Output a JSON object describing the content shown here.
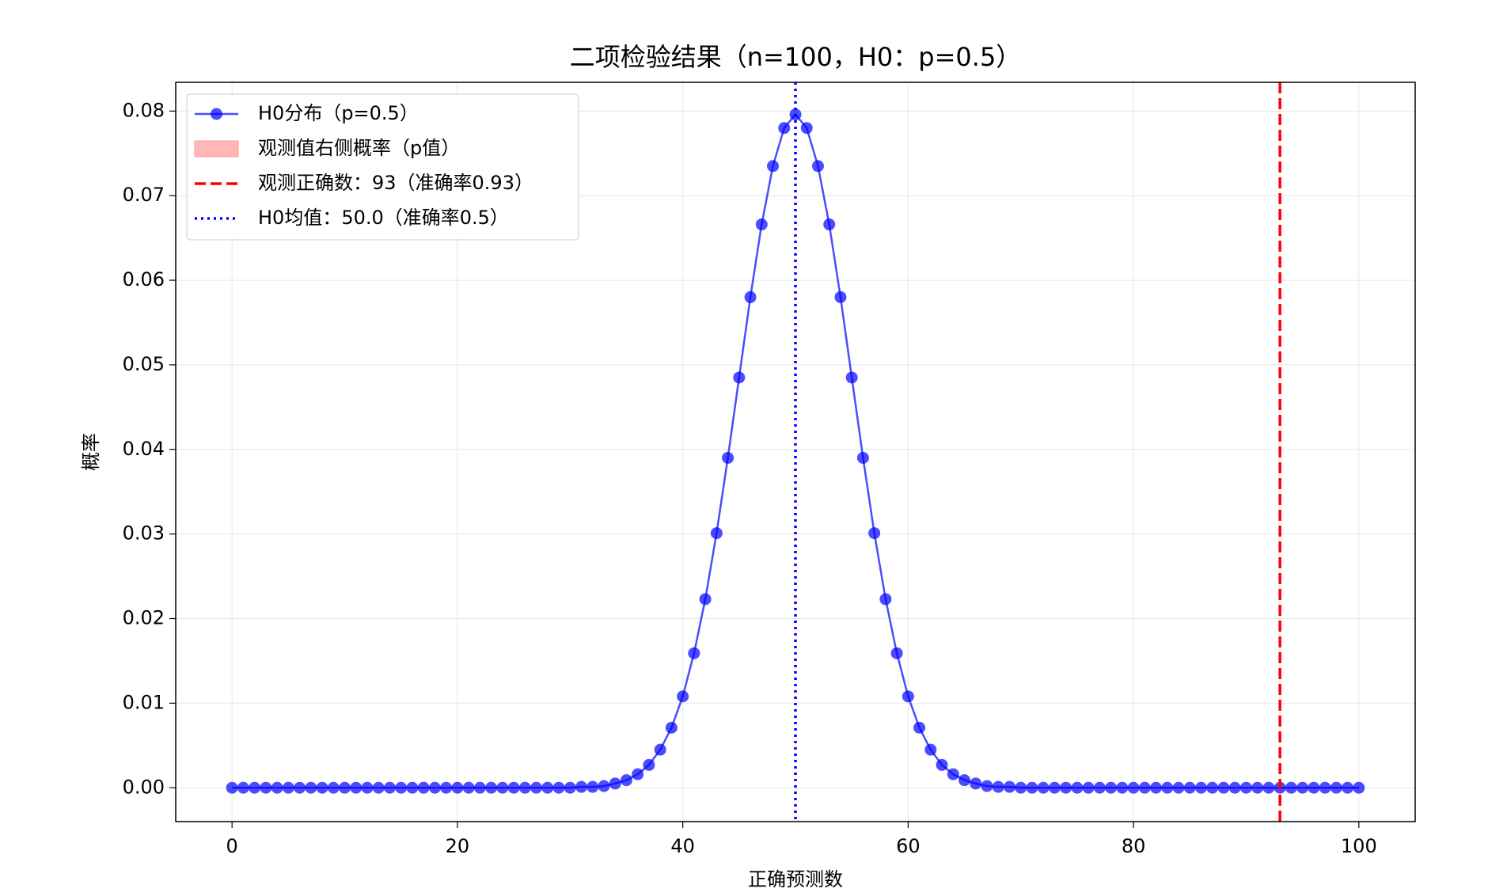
{
  "chart_data": {
    "type": "line",
    "title": "二项检验结果（n=100，H0：p=0.5）",
    "x_label": "正确预测数",
    "y_label": "概率",
    "x": [
      0,
      1,
      2,
      3,
      4,
      5,
      6,
      7,
      8,
      9,
      10,
      11,
      12,
      13,
      14,
      15,
      16,
      17,
      18,
      19,
      20,
      21,
      22,
      23,
      24,
      25,
      26,
      27,
      28,
      29,
      30,
      31,
      32,
      33,
      34,
      35,
      36,
      37,
      38,
      39,
      40,
      41,
      42,
      43,
      44,
      45,
      46,
      47,
      48,
      49,
      50,
      51,
      52,
      53,
      54,
      55,
      56,
      57,
      58,
      59,
      60,
      61,
      62,
      63,
      64,
      65,
      66,
      67,
      68,
      69,
      70,
      71,
      72,
      73,
      74,
      75,
      76,
      77,
      78,
      79,
      80,
      81,
      82,
      83,
      84,
      85,
      86,
      87,
      88,
      89,
      90,
      91,
      92,
      93,
      94,
      95,
      96,
      97,
      98,
      99,
      100
    ],
    "series": [
      {
        "name": "H0分布（p=0.5）",
        "color": "#0000ff",
        "values": [
          0,
          0,
          0,
          0,
          0,
          0,
          0,
          0,
          0,
          0,
          0,
          0,
          0,
          0,
          0,
          0,
          0,
          0,
          0,
          0,
          0,
          0,
          0,
          0,
          0,
          0,
          0,
          0,
          0,
          0,
          0,
          0.0001,
          0.0001,
          0.0002,
          0.0005,
          0.0009,
          0.0016,
          0.0027,
          0.0045,
          0.0071,
          0.0108,
          0.0159,
          0.0223,
          0.0301,
          0.039,
          0.0485,
          0.058,
          0.0666,
          0.0735,
          0.078,
          0.0796,
          0.078,
          0.0735,
          0.0666,
          0.058,
          0.0485,
          0.039,
          0.0301,
          0.0223,
          0.0159,
          0.0108,
          0.0071,
          0.0045,
          0.0027,
          0.0016,
          0.0009,
          0.0005,
          0.0002,
          0.0001,
          0.0001,
          0,
          0,
          0,
          0,
          0,
          0,
          0,
          0,
          0,
          0,
          0,
          0,
          0,
          0,
          0,
          0,
          0,
          0,
          0,
          0,
          0,
          0,
          0,
          0,
          0,
          0,
          0,
          0,
          0,
          0,
          0
        ]
      }
    ],
    "fill": {
      "name": "观测值右侧概率（p值）",
      "color": "#ff9999"
    },
    "reference_lines": [
      {
        "name": "观测正确数：93（准确率0.93）",
        "x": 93,
        "color": "#ff0000",
        "style": "dashed"
      },
      {
        "name": "H0均值：50.0（准确率0.5）",
        "x": 50,
        "color": "#0000ff",
        "style": "dotted"
      }
    ],
    "xlim": [
      -5,
      105
    ],
    "xticks": [
      0,
      20,
      40,
      60,
      80,
      100
    ],
    "ylim": [
      -0.004,
      0.0834
    ],
    "yticks": [
      {
        "value": 0,
        "label": "0.00"
      },
      {
        "value": 0.01,
        "label": "0.01"
      },
      {
        "value": 0.02,
        "label": "0.02"
      },
      {
        "value": 0.03,
        "label": "0.03"
      },
      {
        "value": 0.04,
        "label": "0.04"
      },
      {
        "value": 0.05,
        "label": "0.05"
      },
      {
        "value": 0.06,
        "label": "0.06"
      },
      {
        "value": 0.07,
        "label": "0.07"
      },
      {
        "value": 0.08,
        "label": "0.08"
      }
    ],
    "grid": true,
    "legend": "upper left"
  }
}
